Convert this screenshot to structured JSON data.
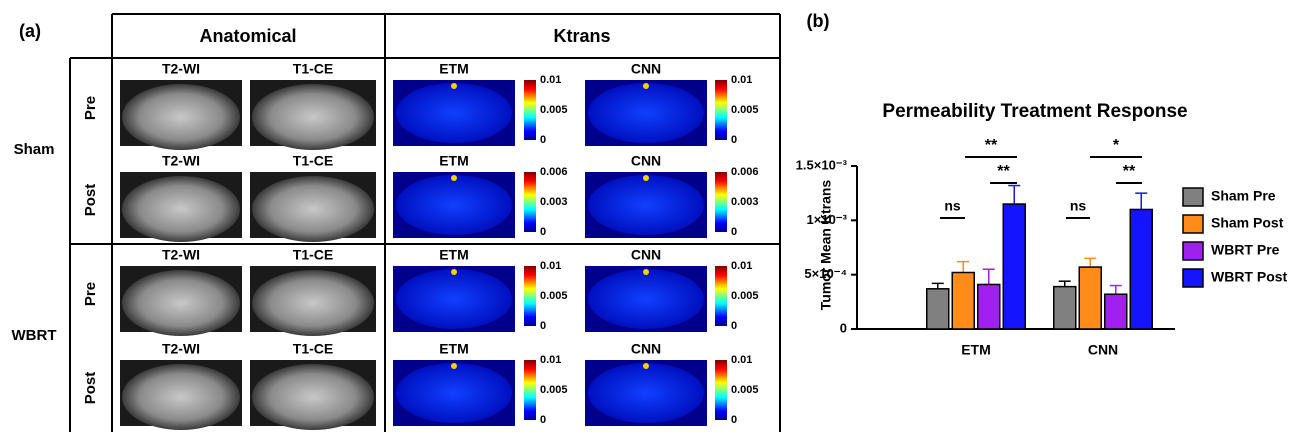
{
  "panel_a": {
    "label": "(a)",
    "headers": [
      "Anatomical",
      "Ktrans"
    ],
    "groups": [
      {
        "name": "Sham",
        "rows": [
          {
            "name": "Pre",
            "images": [
              "T2-WI",
              "T1-CE",
              "ETM",
              "CNN"
            ],
            "colorbars": [
              [
                0.01,
                0.005,
                0
              ],
              [
                0.01,
                0.005,
                0
              ]
            ]
          },
          {
            "name": "Post",
            "images": [
              "T2-WI",
              "T1-CE",
              "ETM",
              "CNN"
            ],
            "colorbars": [
              [
                0.006,
                0.003,
                0
              ],
              [
                0.006,
                0.003,
                0
              ]
            ]
          }
        ]
      },
      {
        "name": "WBRT",
        "rows": [
          {
            "name": "Pre",
            "images": [
              "T2-WI",
              "T1-CE",
              "ETM",
              "CNN"
            ],
            "colorbars": [
              [
                0.01,
                0.005,
                0
              ],
              [
                0.01,
                0.005,
                0
              ]
            ]
          },
          {
            "name": "Post",
            "images": [
              "T2-WI",
              "T1-CE",
              "ETM",
              "CNN"
            ],
            "colorbars": [
              [
                0.01,
                0.005,
                0
              ],
              [
                0.01,
                0.005,
                0
              ]
            ]
          }
        ]
      }
    ]
  },
  "chart_data": {
    "type": "bar",
    "panel_label": "(b)",
    "title": "Permeability Treatment Response",
    "y_label": "Tumor Mean Ktrans",
    "categories": [
      "ETM",
      "CNN"
    ],
    "series": [
      {
        "name": "Sham Pre",
        "color": "#808080",
        "values": [
          0.00037,
          0.00039
        ],
        "errors": [
          5e-05,
          5e-05
        ]
      },
      {
        "name": "Sham Post",
        "color": "#ff8c1a",
        "values": [
          0.00052,
          0.00057
        ],
        "errors": [
          0.0001,
          8e-05
        ]
      },
      {
        "name": "WBRT Pre",
        "color": "#a020f0",
        "values": [
          0.00041,
          0.00032
        ],
        "errors": [
          0.00014,
          8e-05
        ]
      },
      {
        "name": "WBRT Post",
        "color": "#1414ff",
        "values": [
          0.00115,
          0.0011
        ],
        "errors": [
          0.00017,
          0.00015
        ]
      }
    ],
    "ylim": [
      0,
      0.0015
    ],
    "yticks": [
      0,
      {
        "value": 0.0005,
        "label": "5×10⁻⁴"
      },
      {
        "value": 0.001,
        "label": "1×10⁻³"
      },
      {
        "value": 0.0015,
        "label": "1.5×10⁻³"
      }
    ],
    "annotations": [
      "ns",
      "**",
      "**",
      "ns",
      "*",
      "**"
    ],
    "legend": "right"
  }
}
